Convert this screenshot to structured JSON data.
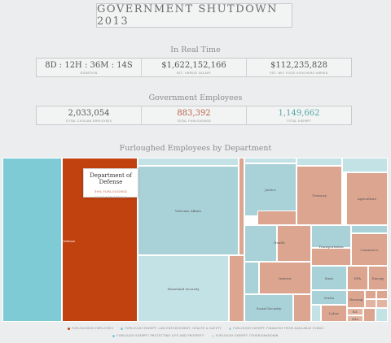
{
  "header": {
    "title": "GOVERNMENT SHUTDOWN 2013"
  },
  "realtime": {
    "heading": "In Real Time",
    "stats": [
      {
        "value": "8D : 12H : 36M : 14S",
        "label": "DURATION"
      },
      {
        "value": "$1,622,152,166",
        "label": "EST. UNPAID SALARY"
      },
      {
        "value": "$112,235,828",
        "label": "EST. WIC FOOD VOUCHERS UNPAID"
      }
    ]
  },
  "employees": {
    "heading": "Government Employees",
    "stats": [
      {
        "value": "2,033,054",
        "label": "TOTAL CIVILIAN EMPLOYEES"
      },
      {
        "value": "883,392",
        "label": "TOTAL FURLOUGHED"
      },
      {
        "value": "1,149,662",
        "label": "TOTAL EXEMPT"
      }
    ]
  },
  "treemap": {
    "heading": "Furloughed Employees by Department",
    "departments": {
      "defense": "Defense",
      "veterans": "Veterans Affairs",
      "homeland": "Homeland Security",
      "justice": "Justice",
      "treasury": "Treasury",
      "agriculture": "Agriculture",
      "health": "Health",
      "transportation": "Transportation",
      "commerce": "Commerce",
      "interior": "Interior",
      "state": "State",
      "epa": "EPA",
      "energy": "Energy",
      "social_security": "Social Security",
      "nasa": "NASA",
      "housing": "Housing",
      "labor": "Labor",
      "ed": "Ed.",
      "edu": "Edu"
    },
    "tooltip": {
      "title": "Department of Defense",
      "percent": "39% FURLOUGHED",
      "action": "CLICK FOR DETAILS"
    },
    "colors": {
      "exempt": "#7ecbd6",
      "selected": "#c1410f",
      "furloughed": "#dca590"
    }
  },
  "legend": {
    "items": [
      {
        "label": "FURLOUGHED EMPLOYEES",
        "color": "#c1410f"
      },
      {
        "label": "FURLOUGH EXEMPT: LAW ENFORCEMENT, HEALTH & SAFETY",
        "color": "#7ecbd6"
      },
      {
        "label": "FURLOUGH EXEMPT: FINANCED FROM AVAILABLE FUNDS",
        "color": "#a9d2d8"
      },
      {
        "label": "FURLOUGH EXEMPT: PROTECTING LIFE AND PROPERTY",
        "color": "#7ecbd6"
      },
      {
        "label": "FURLOUGH EXEMPT: OTHER/UNKNOWN",
        "color": "#c3e2e6"
      }
    ]
  }
}
